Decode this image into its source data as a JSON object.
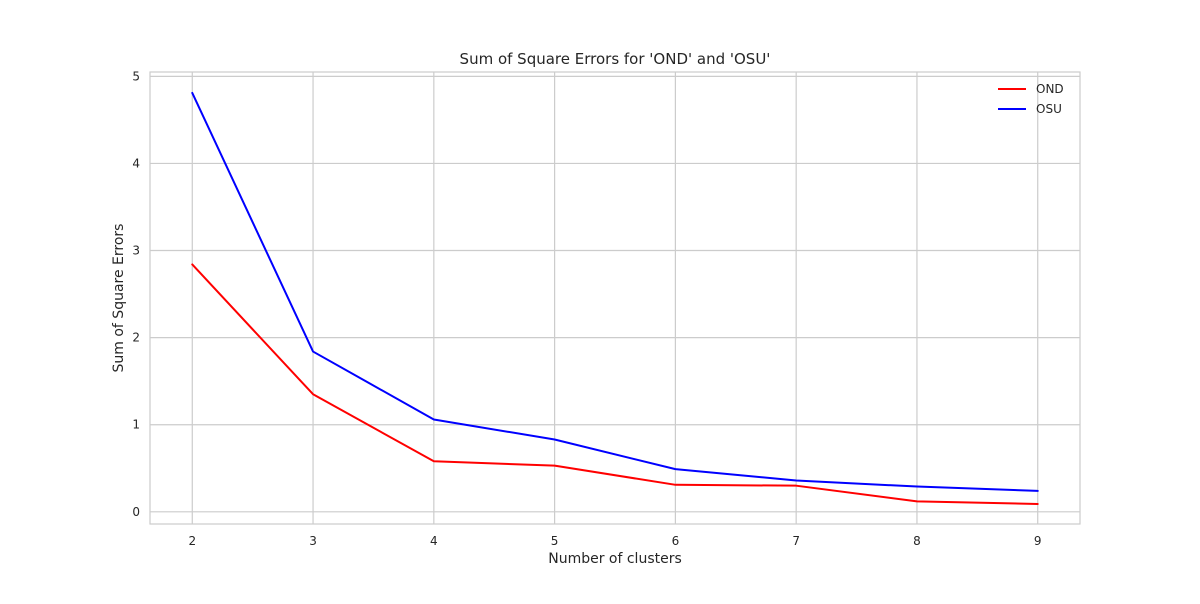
{
  "chart_data": {
    "type": "line",
    "title": "Sum of Square Errors for 'OND' and 'OSU'",
    "xlabel": "Number of clusters",
    "ylabel": "Sum of Square Errors",
    "x": [
      2,
      3,
      4,
      5,
      6,
      7,
      8,
      9
    ],
    "xlim": [
      1.65,
      9.35
    ],
    "ylim": [
      -0.14,
      5.05
    ],
    "xticks": [
      2,
      3,
      4,
      5,
      6,
      7,
      8,
      9
    ],
    "yticks": [
      0,
      1,
      2,
      3,
      4,
      5
    ],
    "grid": true,
    "legend_position": "top-right",
    "series": [
      {
        "name": "OND",
        "color": "#ff0000",
        "values": [
          2.84,
          1.35,
          0.58,
          0.53,
          0.31,
          0.3,
          0.12,
          0.09
        ]
      },
      {
        "name": "OSU",
        "color": "#0000ff",
        "values": [
          4.81,
          1.84,
          1.06,
          0.83,
          0.49,
          0.36,
          0.29,
          0.24
        ]
      }
    ]
  }
}
